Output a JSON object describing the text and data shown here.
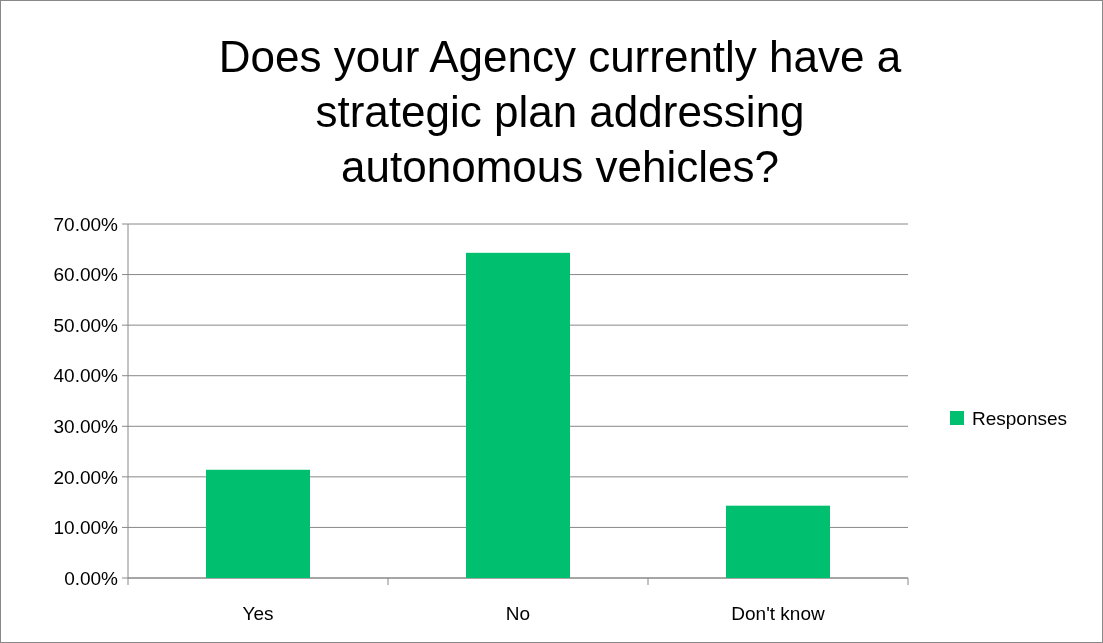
{
  "chart_data": {
    "type": "bar",
    "title": "Does your Agency currently have a strategic plan addressing autonomous vehicles?",
    "categories": [
      "Yes",
      "No",
      "Don't know"
    ],
    "series": [
      {
        "name": "Responses",
        "color": "#00bf6f",
        "values": [
          21.4,
          64.3,
          14.3
        ]
      }
    ],
    "ylim": [
      0,
      70
    ],
    "yticks": [
      {
        "value": 0,
        "label": "0.00%"
      },
      {
        "value": 10,
        "label": "10.00%"
      },
      {
        "value": 20,
        "label": "20.00%"
      },
      {
        "value": 30,
        "label": "30.00%"
      },
      {
        "value": 40,
        "label": "40.00%"
      },
      {
        "value": 50,
        "label": "50.00%"
      },
      {
        "value": 60,
        "label": "60.00%"
      },
      {
        "value": 70,
        "label": "70.00%"
      }
    ],
    "grid": "y",
    "legend": "right"
  }
}
